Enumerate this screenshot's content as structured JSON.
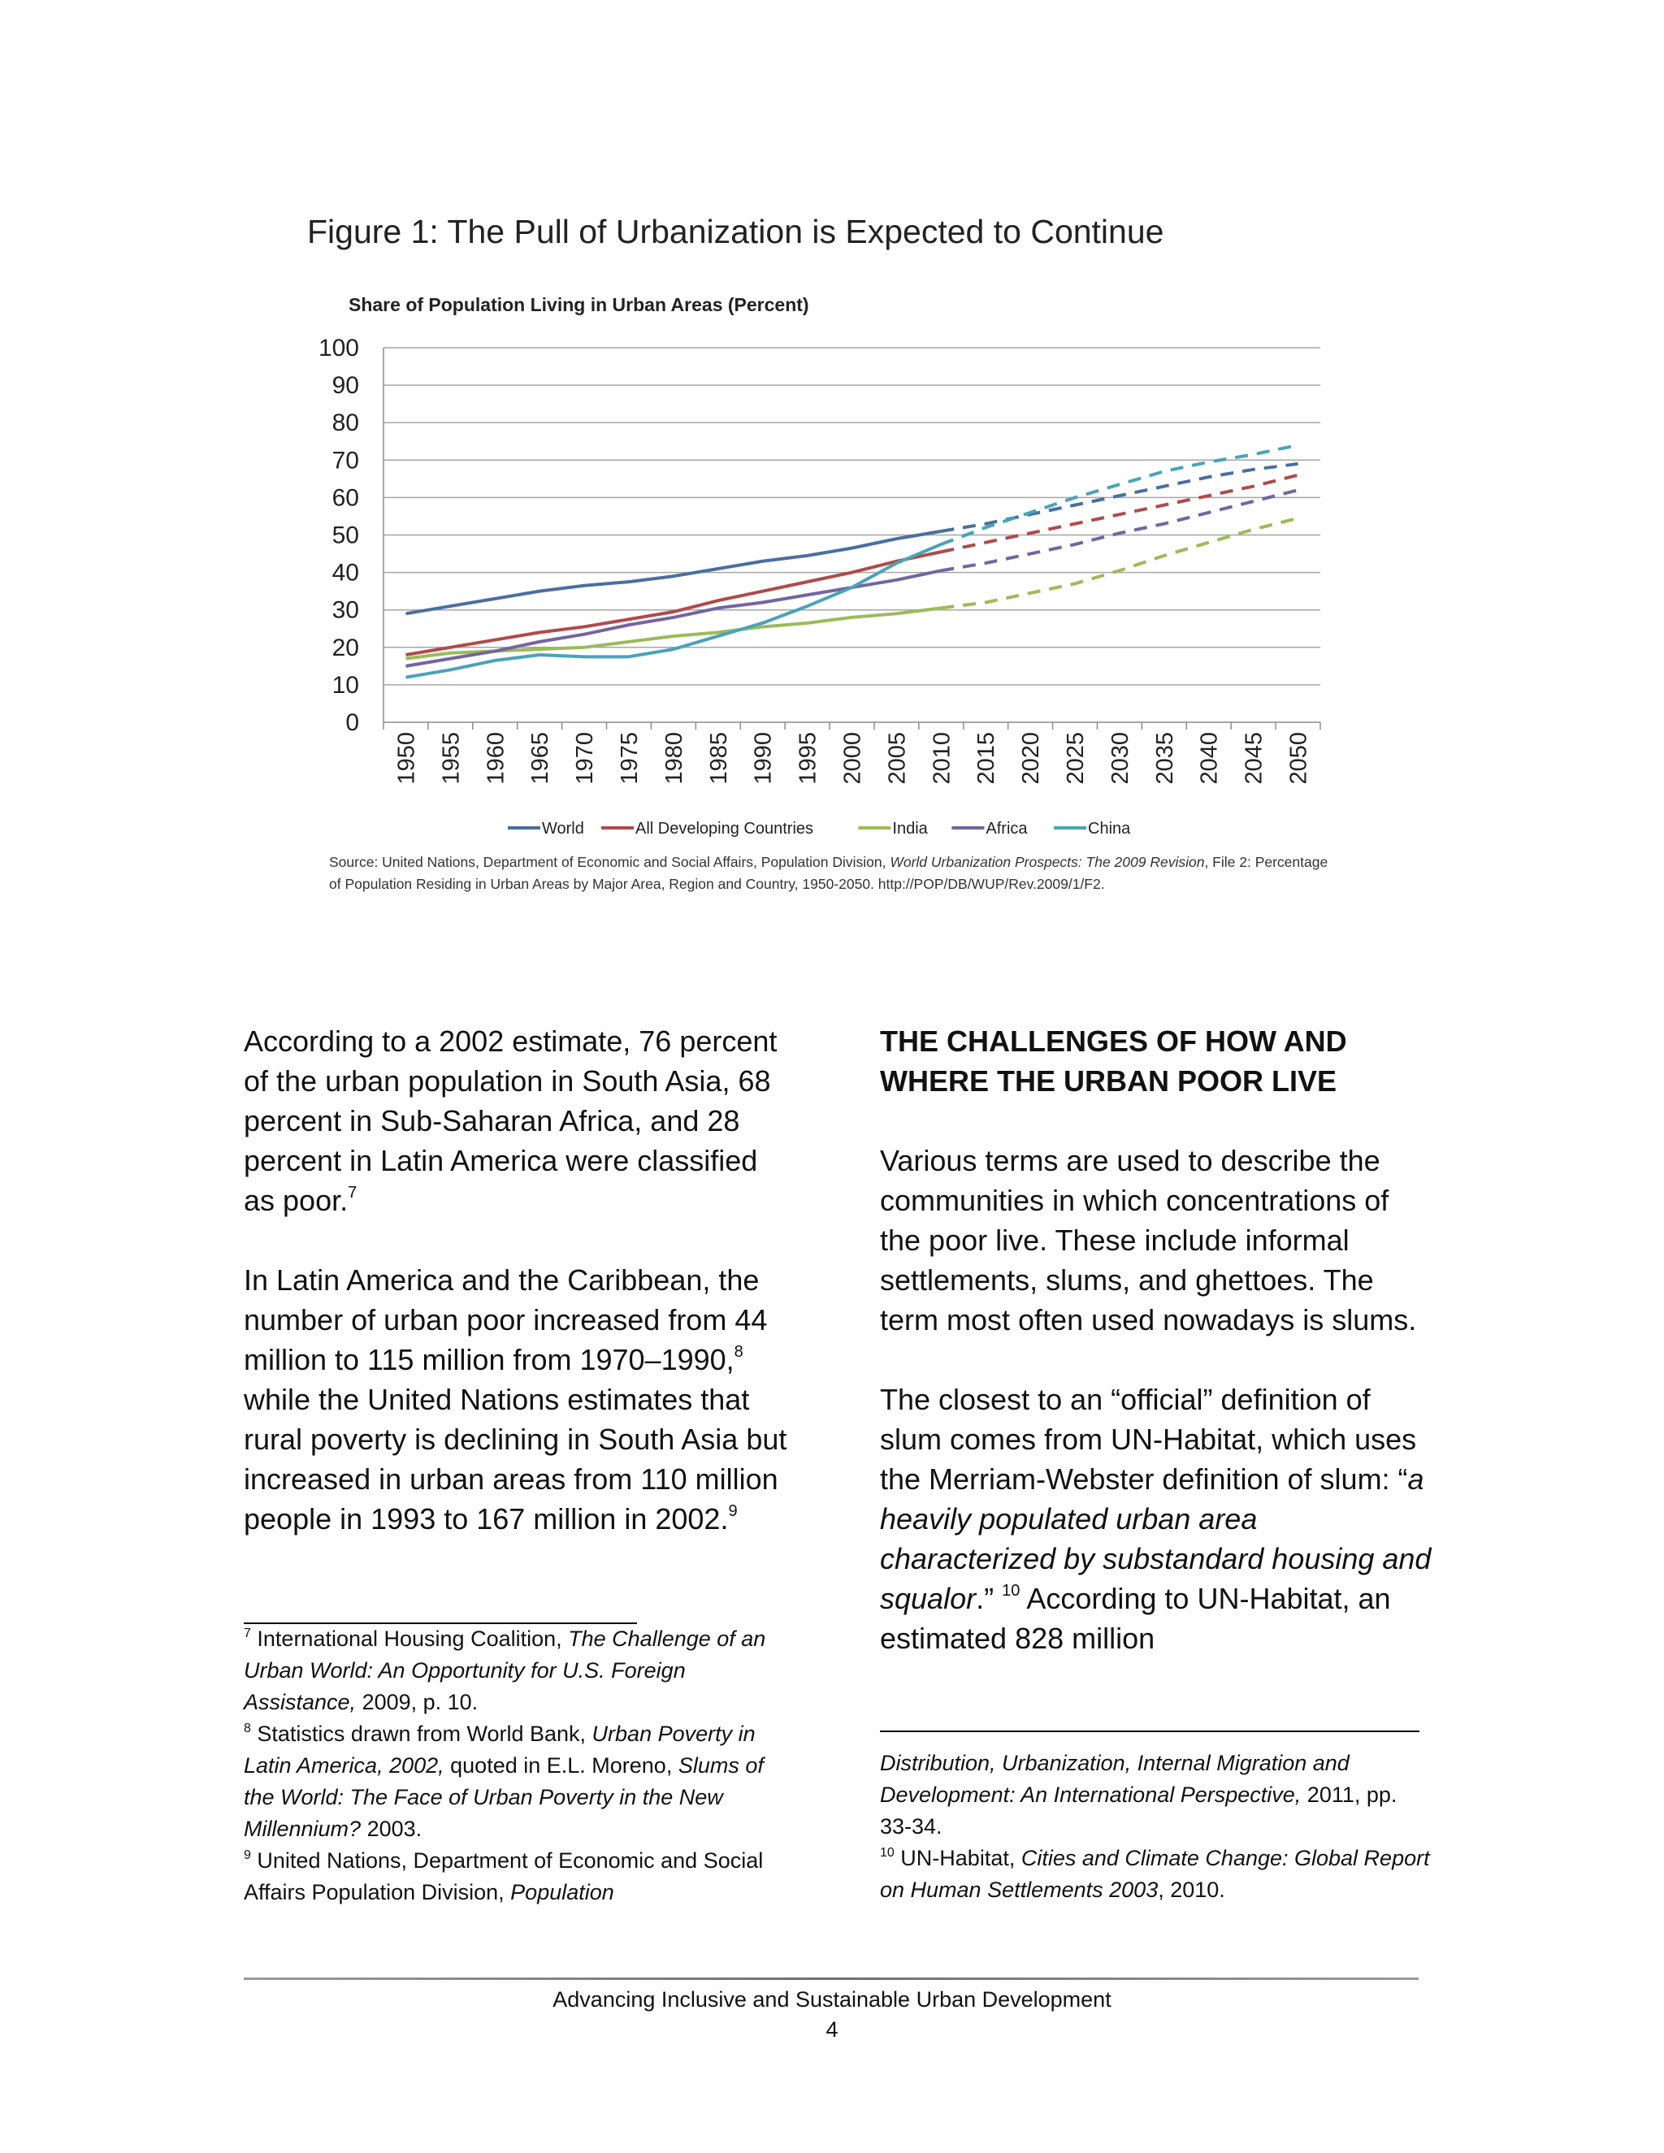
{
  "figure": {
    "title": "Figure 1: The Pull of Urbanization is Expected to Continue",
    "source_prefix": "Source: United Nations, Department of Economic and Social Affairs, Population Division, ",
    "source_title": "World Urbanization Prospects: The 2009 Revision",
    "source_suffix": ", File 2:  Percentage of Population Residing in Urban Areas by Major Area, Region and Country, 1950-2050.   http://POP/DB/WUP/Rev.2009/1/F2."
  },
  "chart_data": {
    "type": "line",
    "title": "Share of Population Living in Urban Areas (Percent)",
    "xlabel": "",
    "ylabel": "",
    "x": [
      1950,
      1955,
      1960,
      1965,
      1970,
      1975,
      1980,
      1985,
      1990,
      1995,
      2000,
      2005,
      2010,
      2015,
      2020,
      2025,
      2030,
      2035,
      2040,
      2045,
      2050
    ],
    "ylim": [
      0,
      100
    ],
    "yticks": [
      0,
      10,
      20,
      30,
      40,
      50,
      60,
      70,
      80,
      90,
      100
    ],
    "grid": true,
    "legend": "bottom",
    "projection_start": 2010,
    "series": [
      {
        "name": "World",
        "color": "#4a6fa0",
        "values": [
          29,
          31,
          33,
          35,
          36.5,
          37.5,
          39,
          41,
          43,
          44.5,
          46.5,
          49,
          51,
          53,
          55.5,
          58,
          60.5,
          63,
          65.5,
          67.5,
          69
        ]
      },
      {
        "name": "All Developing Countries",
        "color": "#b04a4a",
        "values": [
          18,
          20,
          22,
          24,
          25.5,
          27.5,
          29.5,
          32.5,
          35,
          37.5,
          40,
          43,
          45.5,
          48,
          50.5,
          53,
          55.5,
          58,
          60.5,
          63,
          66
        ]
      },
      {
        "name": "India",
        "color": "#9bbb59",
        "values": [
          17,
          18.5,
          19,
          19.5,
          20,
          21.5,
          23,
          24,
          25.5,
          26.5,
          28,
          29,
          30.5,
          32,
          34.5,
          37,
          40.5,
          44.5,
          48,
          51.5,
          54.5
        ]
      },
      {
        "name": "Africa",
        "color": "#7465a0",
        "values": [
          15,
          17,
          19,
          21.5,
          23.5,
          26,
          28,
          30.5,
          32,
          34,
          36,
          38,
          40.5,
          42.5,
          45,
          47.5,
          50.5,
          53,
          56,
          59,
          62
        ]
      },
      {
        "name": "China",
        "color": "#4aa3b8",
        "values": [
          12,
          14,
          16.5,
          18,
          17.5,
          17.5,
          19.5,
          23,
          26.5,
          31,
          36,
          42.5,
          47.5,
          52,
          56,
          60,
          63.5,
          67,
          69.5,
          71.5,
          74
        ]
      }
    ]
  },
  "left_column": {
    "para1": "According to a 2002 estimate, 76 percent of the urban population in South Asia, 68 percent in Sub-Saharan Africa, and 28 percent in Latin America were classified as poor.",
    "para1_fn": "7",
    "para2_a": "In Latin America and the Caribbean, the number of urban poor increased from 44 million to 115 million from 1970–1990,",
    "para2_fn": "8",
    "para2_b": " while the United Nations estimates that rural poverty is declining in South Asia but increased in urban areas from 110 million people in 1993 to 167 million in 2002.",
    "para2_fn2": "9"
  },
  "right_column": {
    "heading": "THE CHALLENGES OF HOW AND WHERE THE URBAN POOR LIVE",
    "para1": "Various terms are used to describe the communities in which concentrations of the poor live. These include informal settlements, slums, and ghettoes. The term most often used nowadays is slums.",
    "para2_a": "The closest to an “official” definition of slum comes from UN-Habitat, which uses the Merriam-Webster definition of slum: “",
    "para2_quote": "a heavily populated urban area characterized by substandard housing and squalor",
    "para2_b": ".” ",
    "para2_fn": "10",
    "para2_c": " According to UN-Habitat, an estimated 828 million"
  },
  "footnotes_left": {
    "fn7_num": "7",
    "fn7_a": " International Housing Coalition, ",
    "fn7_title": "The Challenge of an Urban World:  An Opportunity for U.S. Foreign Assistance,",
    "fn7_b": " 2009, p. 10.",
    "fn8_num": "8",
    "fn8_a": " Statistics drawn from World Bank, ",
    "fn8_title": "Urban Poverty in Latin America, 2002,",
    "fn8_b": " quoted in E.L. Moreno, ",
    "fn8_title2": "Slums of the World: The Face of Urban Poverty in the New Millennium?",
    "fn8_c": " 2003.",
    "fn9_num": "9",
    "fn9_a": " United Nations, Department of Economic and Social Affairs Population Division, ",
    "fn9_title": "Population"
  },
  "footnotes_right": {
    "cont_title": "Distribution, Urbanization, Internal Migration and Development:  An International Perspective,",
    "cont_b": " 2011, pp.  33-34.",
    "fn10_num": "10",
    "fn10_a": " UN-Habitat, ",
    "fn10_title": "Cities and Climate Change: Global Report on Human Settlements 2003",
    "fn10_b": ", 2010."
  },
  "footer": {
    "title": "Advancing Inclusive and Sustainable Urban Development",
    "page": "4"
  }
}
